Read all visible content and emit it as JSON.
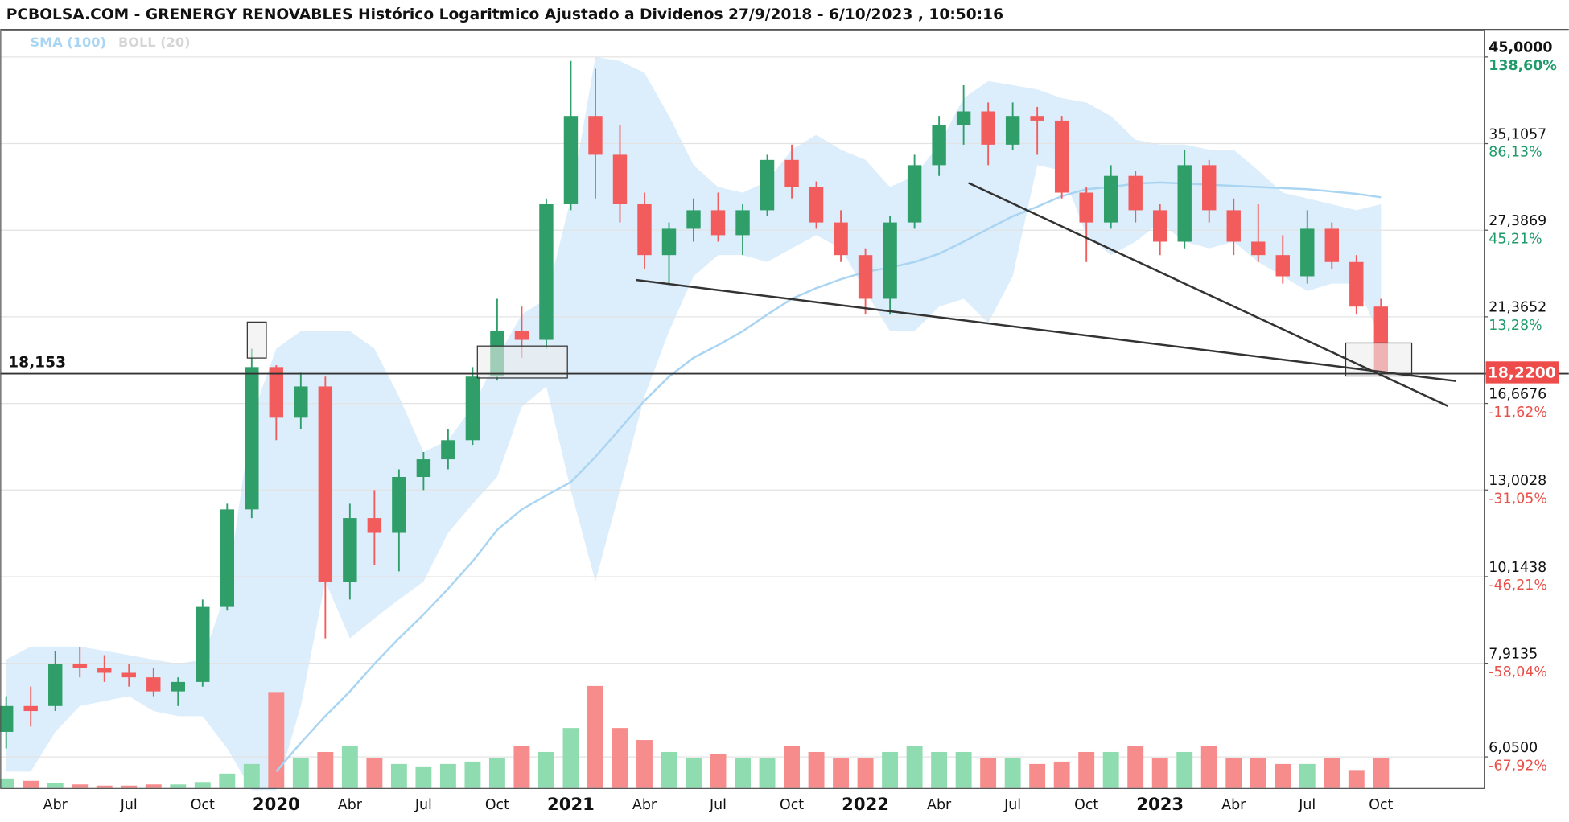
{
  "chart_data": {
    "type": "candlestick",
    "title": "PCBOLSA.COM - GRENERGY RENOVABLES Histórico Logaritmico Ajustado a Dividenos 27/9/2018 - 6/10/2023 , 10:50:16",
    "indicators": [
      {
        "name": "SMA (100)",
        "color": "#a9d5f2"
      },
      {
        "name": "BOLL (20)",
        "color": "#d6d6d6"
      }
    ],
    "categories": [
      null,
      null,
      "Abr",
      null,
      null,
      "Jul",
      null,
      null,
      "Oct",
      null,
      null,
      "2020",
      null,
      null,
      "Abr",
      null,
      null,
      "Jul",
      null,
      null,
      "Oct",
      null,
      null,
      "2021",
      null,
      null,
      "Abr",
      null,
      null,
      "Jul",
      null,
      null,
      "Oct",
      null,
      null,
      "2022",
      null,
      null,
      "Abr",
      null,
      null,
      "Jul",
      null,
      null,
      "Oct",
      null,
      null,
      "2023",
      null,
      null,
      "Abr",
      null,
      null,
      "Jul",
      null,
      null,
      "Oct"
    ],
    "open": [
      6.5,
      7.0,
      7.0,
      7.9,
      7.8,
      7.7,
      7.6,
      7.3,
      7.5,
      9.3,
      12.3,
      18.5,
      16.0,
      17.5,
      10.0,
      12.0,
      11.5,
      13.5,
      14.2,
      15.0,
      18.0,
      20.5,
      20.0,
      29.5,
      38.0,
      34.0,
      29.5,
      25.5,
      27.5,
      29.0,
      27.0,
      29.0,
      33.5,
      31.0,
      28.0,
      25.5,
      22.5,
      28.0,
      33.0,
      37.0,
      38.5,
      35.0,
      38.0,
      37.5,
      30.5,
      28.0,
      32.0,
      29.0,
      26.5,
      33.0,
      29.0,
      26.5,
      25.5,
      24.0,
      27.5,
      25.0,
      22.0
    ],
    "high": [
      7.2,
      7.4,
      8.2,
      8.3,
      8.1,
      7.9,
      7.8,
      7.6,
      9.5,
      12.5,
      19.5,
      18.6,
      18.2,
      18.0,
      12.5,
      13.0,
      13.8,
      14.5,
      15.5,
      18.5,
      22.5,
      22.0,
      30.0,
      44.5,
      43.5,
      37.0,
      30.5,
      28.0,
      30.0,
      30.5,
      29.5,
      34.0,
      35.0,
      31.5,
      29.0,
      26.0,
      28.5,
      34.0,
      38.0,
      41.5,
      39.5,
      39.5,
      39.0,
      38.0,
      31.0,
      33.0,
      32.5,
      29.5,
      34.5,
      33.5,
      30.0,
      29.5,
      27.0,
      29.0,
      28.0,
      25.5,
      22.5
    ],
    "low": [
      6.2,
      6.6,
      6.9,
      7.6,
      7.5,
      7.4,
      7.2,
      7.0,
      7.4,
      9.2,
      12.0,
      15.0,
      15.5,
      8.5,
      9.5,
      10.5,
      10.3,
      13.0,
      13.8,
      14.8,
      17.8,
      19.0,
      19.5,
      29.0,
      30.0,
      28.0,
      24.5,
      23.5,
      26.5,
      26.5,
      25.5,
      28.5,
      30.0,
      27.5,
      25.0,
      21.5,
      21.5,
      27.5,
      32.0,
      35.0,
      33.0,
      34.5,
      34.0,
      30.0,
      25.0,
      27.5,
      28.0,
      25.5,
      26.0,
      28.0,
      25.5,
      25.0,
      23.5,
      23.5,
      24.5,
      21.5,
      18.0
    ],
    "close": [
      7.0,
      6.9,
      7.9,
      7.8,
      7.7,
      7.6,
      7.3,
      7.5,
      9.3,
      12.3,
      18.5,
      16.0,
      17.5,
      10.0,
      12.0,
      11.5,
      13.5,
      14.2,
      15.0,
      18.0,
      20.5,
      20.0,
      29.5,
      38.0,
      34.0,
      29.5,
      25.5,
      27.5,
      29.0,
      27.0,
      29.0,
      33.5,
      31.0,
      28.0,
      25.5,
      22.5,
      28.0,
      33.0,
      37.0,
      38.5,
      35.0,
      38.0,
      37.5,
      30.5,
      28.0,
      32.0,
      29.0,
      26.5,
      33.0,
      29.0,
      26.5,
      25.5,
      24.0,
      27.5,
      25.0,
      22.0,
      18.22
    ],
    "volume": [
      8,
      6,
      4,
      3,
      2,
      2,
      3,
      3,
      5,
      12,
      20,
      80,
      25,
      30,
      35,
      25,
      20,
      18,
      20,
      22,
      25,
      35,
      30,
      50,
      85,
      50,
      40,
      30,
      25,
      28,
      25,
      25,
      35,
      30,
      25,
      25,
      30,
      35,
      30,
      30,
      25,
      25,
      20,
      22,
      30,
      30,
      35,
      25,
      30,
      35,
      25,
      25,
      20,
      20,
      25,
      15,
      25
    ],
    "volume_lim": [
      0,
      100
    ],
    "sma": [
      null,
      null,
      null,
      null,
      null,
      null,
      null,
      null,
      null,
      null,
      null,
      5.8,
      6.3,
      6.8,
      7.3,
      7.9,
      8.5,
      9.1,
      9.8,
      10.6,
      11.6,
      12.3,
      12.8,
      13.3,
      14.3,
      15.5,
      16.8,
      18.0,
      19.0,
      19.7,
      20.5,
      21.5,
      22.5,
      23.2,
      23.8,
      24.3,
      24.6,
      25.0,
      25.6,
      26.5,
      27.5,
      28.5,
      29.3,
      30.2,
      30.8,
      31.0,
      31.3,
      31.4,
      31.3,
      31.2,
      31.1,
      31.0,
      30.9,
      30.8,
      30.6,
      30.4,
      30.1
    ],
    "boll_upper": [
      8.0,
      8.3,
      8.3,
      8.3,
      8.2,
      8.1,
      8.0,
      7.9,
      8.0,
      9.8,
      16.0,
      19.5,
      20.5,
      20.5,
      20.5,
      19.5,
      17.0,
      14.5,
      15.0,
      16.5,
      19.0,
      21.5,
      22.5,
      30.0,
      45.0,
      44.5,
      43.0,
      38.0,
      33.0,
      31.0,
      30.5,
      31.5,
      34.5,
      36.0,
      34.5,
      33.5,
      31.0,
      32.0,
      35.0,
      40.0,
      42.0,
      41.5,
      41.0,
      40.0,
      39.5,
      38.0,
      35.5,
      35.0,
      35.0,
      34.5,
      34.5,
      32.5,
      30.5,
      30.0,
      29.5,
      29.0,
      29.5
    ],
    "boll_lower": [
      5.8,
      5.8,
      6.5,
      7.0,
      7.1,
      7.2,
      6.9,
      6.8,
      6.8,
      6.2,
      5.5,
      5.5,
      7.0,
      10.0,
      8.5,
      9.0,
      9.5,
      10.0,
      11.5,
      12.5,
      13.5,
      16.5,
      17.5,
      13.0,
      10.0,
      13.0,
      17.0,
      20.5,
      24.0,
      25.5,
      25.5,
      25.0,
      26.0,
      27.0,
      26.0,
      23.0,
      20.5,
      20.5,
      22.0,
      22.5,
      21.0,
      24.0,
      33.0,
      32.5,
      27.0,
      25.5,
      26.5,
      28.0,
      26.5,
      26.0,
      26.5,
      25.0,
      24.0,
      23.0,
      23.5,
      23.5,
      20.0
    ],
    "log_scale": true,
    "ylim": [
      5.534,
      48.62
    ],
    "yticks": [
      {
        "value": 45,
        "label": "45,0000"
      },
      {
        "value": 35.1057,
        "label": "35,1057"
      },
      {
        "value": 27.3869,
        "label": "27,3869"
      },
      {
        "value": 21.3652,
        "label": "21,3652"
      },
      {
        "value": 16.6676,
        "label": "16,6676"
      },
      {
        "value": 13.0028,
        "label": "13,0028"
      },
      {
        "value": 10.1438,
        "label": "10,1438"
      },
      {
        "value": 7.9135,
        "label": "7,9135"
      },
      {
        "value": 6.05,
        "label": "6,0500"
      }
    ],
    "ytick_changes": [
      "138,60%",
      "86,13%",
      "45,21%",
      "13,28%",
      "-11,62%",
      "-31,05%",
      "-46,21%",
      "-58,04%",
      "-67,92%"
    ],
    "grid": true,
    "last_price": {
      "value": 18.22,
      "label": "18,2200"
    },
    "reference_line": {
      "value": 18.153,
      "label": "18,153"
    },
    "colors": {
      "up": "#2f9e68",
      "down": "#f25c5c",
      "volume_up": "#8fdcb0",
      "volume_down": "#f78c8c",
      "band": "#dcedfb",
      "change_up": "#1f9a6a",
      "change_down": "#e8504a",
      "last_price": "#ee4b4b"
    }
  }
}
